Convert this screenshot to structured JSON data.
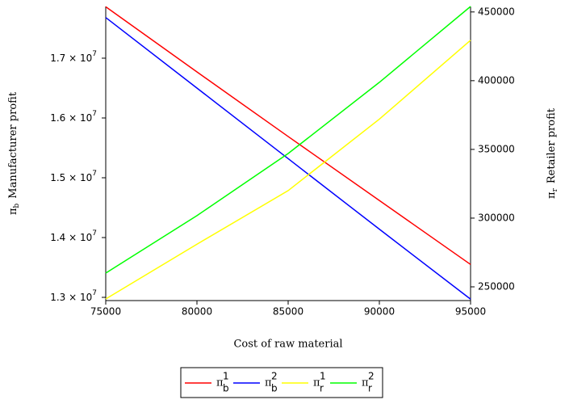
{
  "chart_data": {
    "type": "line",
    "xlabel": "Cost of raw material",
    "ylabel_symbol": "π",
    "ylabel_subscript": "b",
    "ylabel": "Manufacturer profit",
    "y2label_symbol": "π",
    "y2label_subscript": "r",
    "y2label": "Retailer profit",
    "x": [
      75000,
      80000,
      85000,
      90000,
      95000
    ],
    "xlim": [
      75000,
      95000
    ],
    "xticks": [
      75000,
      80000,
      85000,
      90000,
      95000
    ],
    "ylim": [
      12946000,
      17865000
    ],
    "yticks": [
      {
        "value": 13000000,
        "label": "1.3 × 10",
        "exponent": "7"
      },
      {
        "value": 14000000,
        "label": "1.4 × 10",
        "exponent": "7"
      },
      {
        "value": 15000000,
        "label": "1.5 × 10",
        "exponent": "7"
      },
      {
        "value": 16000000,
        "label": "1.6 × 10",
        "exponent": "7"
      },
      {
        "value": 17000000,
        "label": "1.7 × 10",
        "exponent": "7"
      }
    ],
    "y2lim": [
      240000,
      454000
    ],
    "y2ticks": [
      250000,
      300000,
      350000,
      400000,
      450000
    ],
    "series": [
      {
        "name": "π",
        "subscript": "b",
        "superscript": "1",
        "color": "#ff0000",
        "values": [
          17860000,
          16770000,
          15690000,
          14620000,
          13550000
        ]
      },
      {
        "name": "π",
        "subscript": "b",
        "superscript": "2",
        "color": "#0000ff",
        "values": [
          17680000,
          16500000,
          15320000,
          14140000,
          12970000
        ]
      },
      {
        "name": "π",
        "subscript": "r",
        "superscript": "1",
        "color": "#ffff00",
        "axis": "y2",
        "values": [
          241200,
          281000,
          320000,
          372000,
          429400
        ]
      },
      {
        "name": "π",
        "subscript": "r",
        "superscript": "2",
        "color": "#00ff00",
        "axis": "y2",
        "values": [
          260000,
          301800,
          347000,
          398800,
          454000
        ]
      }
    ],
    "legend": "bottom"
  }
}
